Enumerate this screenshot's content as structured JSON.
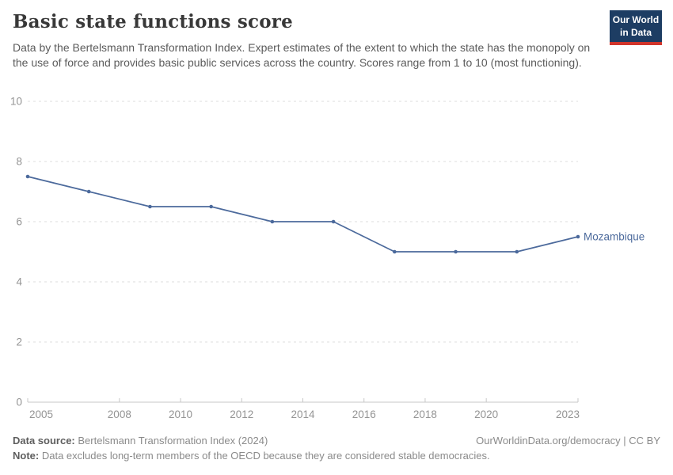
{
  "header": {
    "title": "Basic state functions score",
    "subtitle": "Data by the Bertelsmann Transformation Index. Expert estimates of the extent to which the state has the monopoly on the use of force and provides basic public services across the country. Scores range from 1 to 10 (most functioning).",
    "logo_line1": "Our World",
    "logo_line2": "in Data"
  },
  "chart_data": {
    "type": "line",
    "title": "Basic state functions score",
    "x": [
      2005,
      2007,
      2009,
      2011,
      2013,
      2015,
      2017,
      2019,
      2021,
      2023
    ],
    "series": [
      {
        "name": "Mozambique",
        "color": "#4c6a9c",
        "values": [
          7.5,
          7.0,
          6.5,
          6.5,
          6.0,
          6.0,
          5.0,
          5.0,
          5.0,
          5.5
        ]
      }
    ],
    "xlim": [
      2005,
      2023
    ],
    "ylim": [
      0,
      10
    ],
    "x_ticks": [
      2005,
      2008,
      2010,
      2012,
      2014,
      2016,
      2018,
      2020,
      2023
    ],
    "y_ticks": [
      0,
      2,
      4,
      6,
      8,
      10
    ],
    "grid": "horizontal-dashed",
    "legend_position": "end-of-line-label"
  },
  "footer": {
    "datasource_label": "Data source:",
    "datasource_value": "Bertelsmann Transformation Index (2024)",
    "credit": "OurWorldinData.org/democracy | CC BY",
    "note_label": "Note:",
    "note_value": "Data excludes long-term members of the OECD because they are considered stable democracies."
  },
  "colors": {
    "series_line": "#4c6a9c",
    "logo_background": "#1d3d63",
    "logo_accent": "#d1352b",
    "gridline": "#dcdcdc",
    "axis_line": "#c7c7c7",
    "tick_text": "#949494"
  }
}
